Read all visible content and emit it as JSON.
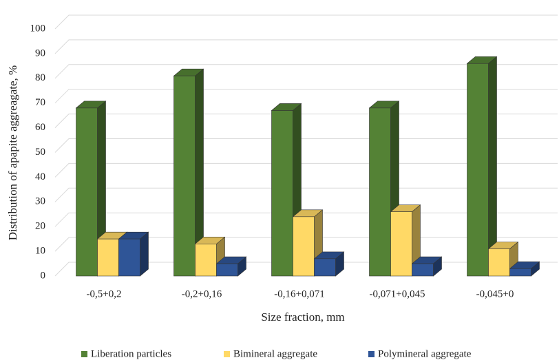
{
  "chart_data": {
    "type": "bar3d",
    "y_label": "Distribution of apapite aggreagate, %",
    "x_label": "Size fraction, mm",
    "categories": [
      "-0,5+0,2",
      "-0,2+0,16",
      "-0,16+0,071",
      "-0,071+0,045",
      "-0,045+0"
    ],
    "series": [
      {
        "name": "Liberation particles",
        "color": "#548235",
        "values": [
          68,
          81,
          67,
          68,
          86
        ]
      },
      {
        "name": "Bimineral aggregate",
        "color": "#ffd966",
        "values": [
          15,
          13,
          24,
          26,
          11
        ]
      },
      {
        "name": "Polymineral aggregate",
        "color": "#2f5597",
        "values": [
          15,
          5,
          7,
          5,
          3
        ]
      }
    ],
    "ylim": [
      0,
      100
    ],
    "yticks": [
      0,
      10,
      20,
      30,
      40,
      50,
      60,
      70,
      80,
      90,
      100
    ],
    "grid": true
  }
}
